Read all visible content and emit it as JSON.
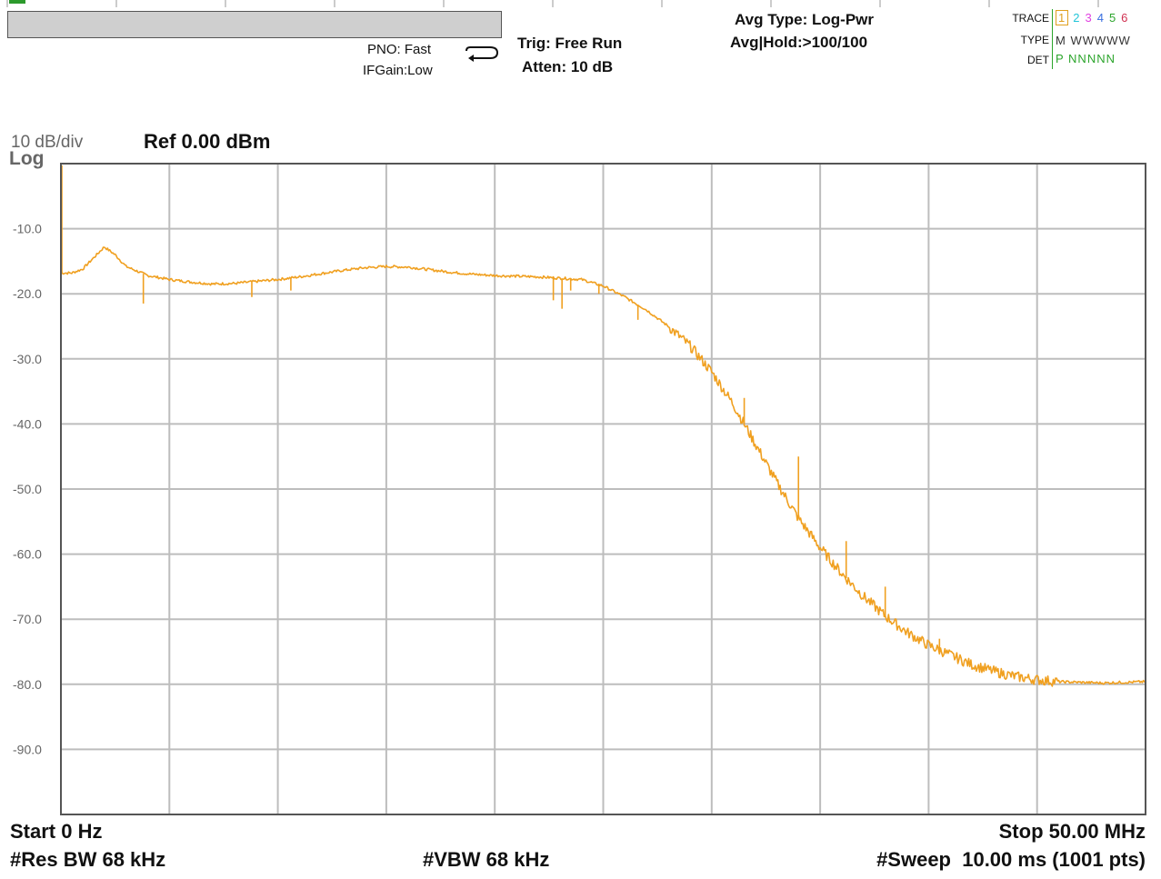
{
  "header": {
    "pno": "PNO: Fast",
    "ifgain": "IFGain:Low",
    "trig": "Trig: Free Run",
    "atten": "Atten: 10 dB",
    "avg_type": "Avg Type: Log-Pwr",
    "avg_hold": "Avg|Hold:>100/100"
  },
  "trace_panel": {
    "trace_label": "TRACE",
    "type_label": "TYPE",
    "det_label": "DET",
    "trace_numbers": [
      "1",
      "2",
      "3",
      "4",
      "5",
      "6"
    ],
    "trace_colors": [
      "#e0a020",
      "#22c5d8",
      "#e040e0",
      "#3a70e0",
      "#2ca52c",
      "#d03050"
    ],
    "type_value": "M WWWWW",
    "det_value": "P NNNNN"
  },
  "scale": {
    "div_label": "10 dB/div",
    "log_label": "Log",
    "ref_label": "Ref 0.00 dBm"
  },
  "footer": {
    "start": "Start 0 Hz",
    "stop": "Stop 50.00 MHz",
    "res_bw": "#Res BW 68 kHz",
    "vbw": "#VBW 68 kHz",
    "sweep": "#Sweep  10.00 ms (1001 pts)"
  },
  "chart_data": {
    "type": "line",
    "xlim": [
      0,
      50
    ],
    "ylim": [
      -100,
      0
    ],
    "y_tick_labels": [
      "-10.0",
      "-20.0",
      "-30.0",
      "-40.0",
      "-50.0",
      "-60.0",
      "-70.0",
      "-80.0",
      "-90.0"
    ],
    "y_ticks": [
      -10,
      -20,
      -30,
      -40,
      -50,
      -60,
      -70,
      -80,
      -90
    ],
    "grid": true,
    "trace_color": "#f0a020",
    "series": [
      {
        "x": [
          0,
          0.5,
          1.0,
          1.5,
          2.0,
          2.5,
          3.0,
          4.0,
          5.0,
          6.0,
          7.0,
          8.0,
          9.0,
          10.0,
          11.0,
          12.0,
          13.0,
          14.0,
          15.0,
          16.0,
          17.0,
          18.0,
          19.0,
          20.0,
          21.0,
          22.0,
          23.0,
          24.0,
          25.0,
          26.0,
          27.0,
          28.0,
          29.0,
          30.0,
          31.0,
          32.0,
          33.0,
          34.0,
          35.0,
          36.0,
          37.0,
          38.0,
          39.0,
          40.0,
          41.0,
          42.0,
          43.0,
          44.0,
          45.0,
          46.0,
          47.0,
          48.0,
          49.0,
          50.0
        ],
        "values": [
          -16.8,
          -16.8,
          -16.2,
          -14.5,
          -12.8,
          -14.0,
          -15.8,
          -17.2,
          -17.8,
          -18.2,
          -18.5,
          -18.4,
          -18.1,
          -17.8,
          -17.4,
          -16.9,
          -16.4,
          -16.0,
          -15.8,
          -15.9,
          -16.3,
          -16.7,
          -17.0,
          -17.2,
          -17.3,
          -17.4,
          -17.6,
          -17.8,
          -18.8,
          -20.5,
          -22.5,
          -25.0,
          -28.0,
          -32.0,
          -37.0,
          -43.0,
          -49.0,
          -54.5,
          -59.0,
          -63.0,
          -66.5,
          -69.5,
          -72.0,
          -74.0,
          -75.5,
          -77.0,
          -78.0,
          -78.8,
          -79.3,
          -79.6,
          -79.7,
          -79.8,
          -79.7,
          -79.6
        ]
      }
    ],
    "spikes": [
      {
        "x": 3.8,
        "y": -21.5
      },
      {
        "x": 8.8,
        "y": -20.5
      },
      {
        "x": 10.6,
        "y": -19.5
      },
      {
        "x": 22.7,
        "y": -21.0
      },
      {
        "x": 23.1,
        "y": -22.3
      },
      {
        "x": 23.5,
        "y": -19.5
      },
      {
        "x": 24.8,
        "y": -20.0
      },
      {
        "x": 26.6,
        "y": -24.0
      },
      {
        "x": 31.5,
        "y": -36.0
      },
      {
        "x": 34.0,
        "y": -45.0
      },
      {
        "x": 36.2,
        "y": -58.0
      },
      {
        "x": 38.0,
        "y": -65.0
      },
      {
        "x": 40.5,
        "y": -73.0
      }
    ]
  }
}
